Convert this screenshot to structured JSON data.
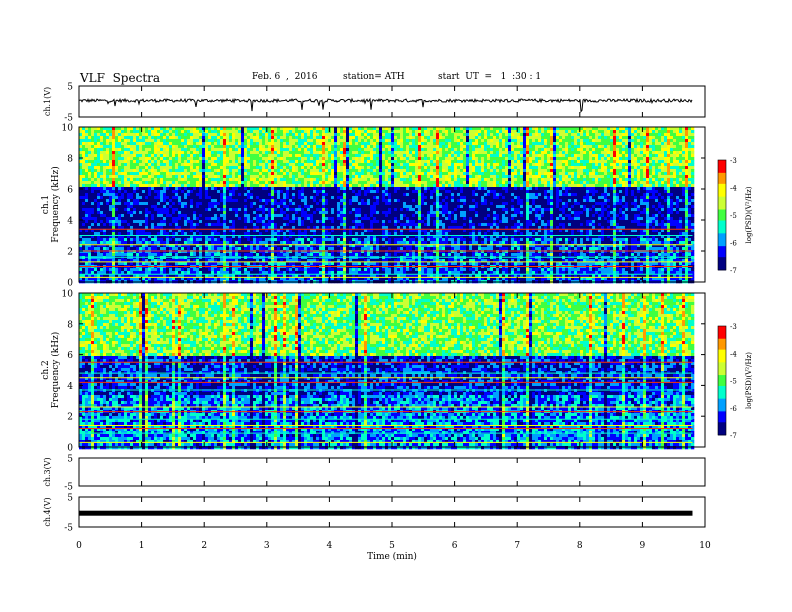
{
  "header": {
    "title": "VLF  Spectra",
    "date": "Feb. 6  ,  2016",
    "station": "station= ATH",
    "start": "start  UT  =   1  :30 : 1"
  },
  "chart_data": [
    {
      "type": "line",
      "panel": "ch1-waveform",
      "ylabel": "ch.1(V)",
      "yticks": [
        "5",
        "-5"
      ],
      "ylim": [
        -5,
        5
      ],
      "xlim": [
        0,
        10
      ],
      "x_end_data": 9.8,
      "approx_level": 0.3
    },
    {
      "type": "heatmap",
      "panel": "ch1-spectrogram",
      "ylabel": "ch.1 Frequency (kHz)",
      "yticks": [
        "0",
        "2",
        "4",
        "6",
        "8",
        "10"
      ],
      "ylim": [
        0,
        10
      ],
      "xlim": [
        0,
        10
      ],
      "x_end_data": 9.8,
      "colorbar": {
        "label": "log(PSD)(V²/Hz)",
        "ticks": [
          "-3",
          "-4",
          "-5",
          "-6",
          "-7"
        ],
        "range": [
          -7,
          -3
        ]
      },
      "bands": [
        {
          "fmin": 0.0,
          "fmax": 2.9,
          "level": -6.2
        },
        {
          "fmin": 2.9,
          "fmax": 6.3,
          "level": -6.6
        },
        {
          "fmin": 6.3,
          "fmax": 10.0,
          "level": -4.8
        }
      ],
      "lines_khz": [
        0.3,
        0.5,
        1.0,
        1.3,
        1.6,
        2.0,
        2.4,
        3.0,
        3.4
      ]
    },
    {
      "type": "heatmap",
      "panel": "ch2-spectrogram",
      "ylabel": "ch.2 Frequency (kHz)",
      "yticks": [
        "0",
        "2",
        "4",
        "6",
        "8",
        "10"
      ],
      "ylim": [
        0,
        10
      ],
      "xlim": [
        0,
        10
      ],
      "x_end_data": 9.8,
      "colorbar": {
        "label": "log(PSD)(V²/Hz)",
        "ticks": [
          "-3",
          "-4",
          "-5",
          "-6",
          "-7"
        ],
        "range": [
          -7,
          -3
        ]
      },
      "bands": [
        {
          "fmin": 0.0,
          "fmax": 3.4,
          "level": -6.0
        },
        {
          "fmin": 3.4,
          "fmax": 6.0,
          "level": -6.4
        },
        {
          "fmin": 6.0,
          "fmax": 10.0,
          "level": -4.9
        }
      ],
      "lines_khz": [
        0.3,
        0.9,
        1.2,
        1.4,
        1.8,
        2.3,
        2.6,
        3.7,
        4.2,
        4.5,
        4.8,
        5.5
      ]
    },
    {
      "type": "line",
      "panel": "ch3-waveform",
      "ylabel": "ch.3(V)",
      "yticks": [
        "5",
        "-5"
      ],
      "ylim": [
        -5,
        5
      ],
      "xlim": [
        0,
        10
      ]
    },
    {
      "type": "line",
      "panel": "ch4-waveform",
      "ylabel": "ch.4(V)",
      "yticks": [
        "5",
        "-5"
      ],
      "ylim": [
        -5,
        5
      ],
      "xlim": [
        0,
        10
      ],
      "x_end_data": 9.8,
      "approx_level": -0.4
    }
  ],
  "xaxis": {
    "label": "Time  (min)",
    "ticks": [
      "0",
      "1",
      "2",
      "3",
      "4",
      "5",
      "6",
      "7",
      "8",
      "9",
      "10"
    ]
  },
  "colors": {
    "colormap": [
      "#000080",
      "#0000ff",
      "#00a0ff",
      "#00ffcc",
      "#40ff40",
      "#ccff33",
      "#ffff00",
      "#ff9900",
      "#ff0000",
      "#ffffff"
    ]
  }
}
